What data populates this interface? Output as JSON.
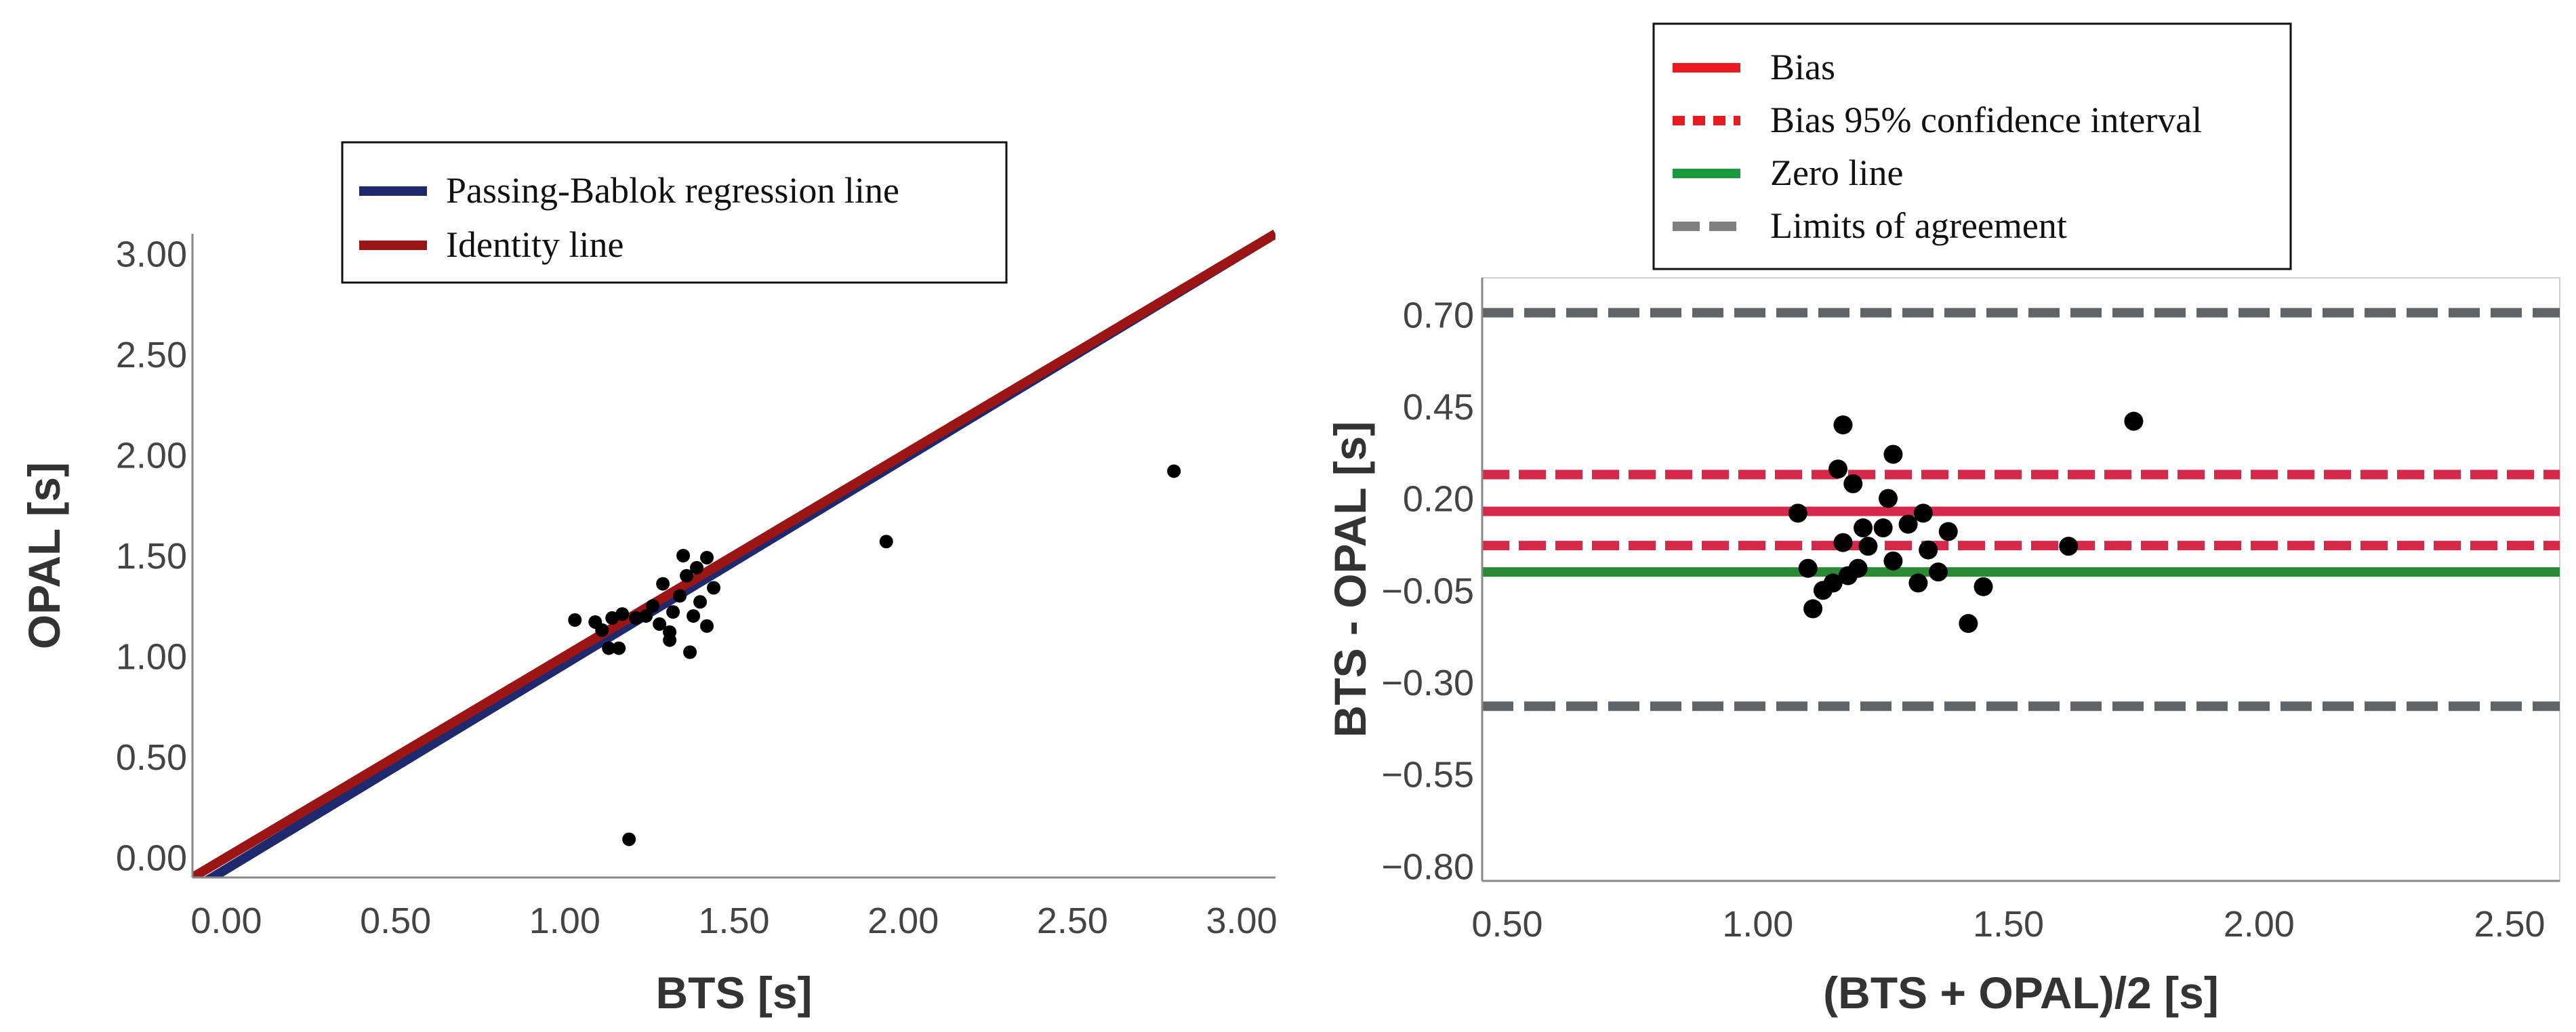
{
  "chart_data": [
    {
      "type": "scatter",
      "xlabel": "BTS  [s]",
      "ylabel": "OPAL  [s]",
      "xlim": [
        -0.1,
        3.1
      ],
      "ylim": [
        -0.1,
        3.1
      ],
      "xticks": [
        "0.00",
        "0.50",
        "1.00",
        "1.50",
        "2.00",
        "2.50",
        "3.00"
      ],
      "yticks": [
        "0.00",
        "0.50",
        "1.00",
        "1.50",
        "2.00",
        "2.50",
        "3.00"
      ],
      "legend_position": "top-center",
      "legend": [
        {
          "label": "Passing-Bablok regression line",
          "color": "#1f2a6e",
          "style": "solid"
        },
        {
          "label": "Identity line",
          "color": "#9b1515",
          "style": "solid"
        }
      ],
      "lines": [
        {
          "name": "Passing-Bablok regression line",
          "color": "#1f2a6e",
          "x": [
            -0.1,
            3.1
          ],
          "y": [
            -0.16,
            3.1
          ]
        },
        {
          "name": "Identity line",
          "color": "#9b1515",
          "x": [
            -0.1,
            3.1
          ],
          "y": [
            -0.1,
            3.1
          ]
        }
      ],
      "points": [
        {
          "x": 1.03,
          "y": 1.18
        },
        {
          "x": 1.09,
          "y": 1.17
        },
        {
          "x": 1.11,
          "y": 1.13
        },
        {
          "x": 1.13,
          "y": 1.04
        },
        {
          "x": 1.14,
          "y": 1.19
        },
        {
          "x": 1.16,
          "y": 1.04
        },
        {
          "x": 1.17,
          "y": 1.21
        },
        {
          "x": 1.19,
          "y": 0.09
        },
        {
          "x": 1.21,
          "y": 1.19
        },
        {
          "x": 1.24,
          "y": 1.2
        },
        {
          "x": 1.26,
          "y": 1.25
        },
        {
          "x": 1.28,
          "y": 1.16
        },
        {
          "x": 1.29,
          "y": 1.36
        },
        {
          "x": 1.31,
          "y": 1.08
        },
        {
          "x": 1.31,
          "y": 1.12
        },
        {
          "x": 1.32,
          "y": 1.22
        },
        {
          "x": 1.34,
          "y": 1.3
        },
        {
          "x": 1.35,
          "y": 1.5
        },
        {
          "x": 1.36,
          "y": 1.4
        },
        {
          "x": 1.37,
          "y": 1.02
        },
        {
          "x": 1.38,
          "y": 1.2
        },
        {
          "x": 1.39,
          "y": 1.44
        },
        {
          "x": 1.4,
          "y": 1.27
        },
        {
          "x": 1.42,
          "y": 1.49
        },
        {
          "x": 1.42,
          "y": 1.15
        },
        {
          "x": 1.44,
          "y": 1.34
        },
        {
          "x": 1.95,
          "y": 1.57
        },
        {
          "x": 2.8,
          "y": 1.92
        }
      ]
    },
    {
      "type": "scatter",
      "xlabel": "(BTS + OPAL)/2  [s]",
      "ylabel": "BTS - OPAL  [s]",
      "xlim": [
        0.45,
        2.6
      ],
      "ylim": [
        -0.84,
        0.8
      ],
      "xticks": [
        "0.50",
        "1.00",
        "1.50",
        "2.00",
        "2.50"
      ],
      "yticks": [
        "0.70",
        "0.45",
        "0.20",
        "-0.05",
        "-0.30",
        "-0.55",
        "-0.80"
      ],
      "legend_position": "top-center",
      "legend": [
        {
          "label": "Bias",
          "color": "#e8191e",
          "style": "solid"
        },
        {
          "label": "Bias 95% confidence interval",
          "color": "#e8191e",
          "style": "dotted"
        },
        {
          "label": "Zero line",
          "color": "#1a9a3c",
          "style": "solid"
        },
        {
          "label": "Limits of agreement",
          "color": "#808080",
          "style": "dashed"
        }
      ],
      "hlines": [
        {
          "name": "Limits of agreement",
          "y": 0.705,
          "color": "#5f6468",
          "style": "dashed"
        },
        {
          "name": "Bias 95% confidence interval",
          "y": 0.265,
          "color": "#d6294a",
          "style": "dashed"
        },
        {
          "name": "Bias",
          "y": 0.165,
          "color": "#d6294a",
          "style": "solid"
        },
        {
          "name": "Bias 95% confidence interval",
          "y": 0.072,
          "color": "#d6294a",
          "style": "dashed"
        },
        {
          "name": "Zero line",
          "y": 0.0,
          "color": "#2a8a34",
          "style": "solid"
        },
        {
          "name": "Limits of agreement",
          "y": -0.365,
          "color": "#5f6468",
          "style": "dashed"
        }
      ],
      "points": [
        {
          "x": 1.08,
          "y": 0.16
        },
        {
          "x": 1.1,
          "y": 0.01
        },
        {
          "x": 1.11,
          "y": -0.1
        },
        {
          "x": 1.13,
          "y": -0.05
        },
        {
          "x": 1.15,
          "y": -0.03
        },
        {
          "x": 1.16,
          "y": 0.28
        },
        {
          "x": 1.17,
          "y": 0.4
        },
        {
          "x": 1.17,
          "y": 0.08
        },
        {
          "x": 1.18,
          "y": -0.01
        },
        {
          "x": 1.19,
          "y": 0.24
        },
        {
          "x": 1.2,
          "y": 0.01
        },
        {
          "x": 1.21,
          "y": 0.12
        },
        {
          "x": 1.22,
          "y": 0.07
        },
        {
          "x": 1.25,
          "y": 0.12
        },
        {
          "x": 1.26,
          "y": 0.2
        },
        {
          "x": 1.27,
          "y": 0.32
        },
        {
          "x": 1.27,
          "y": 0.03
        },
        {
          "x": 1.3,
          "y": 0.13
        },
        {
          "x": 1.32,
          "y": -0.03
        },
        {
          "x": 1.33,
          "y": 0.16
        },
        {
          "x": 1.34,
          "y": 0.06
        },
        {
          "x": 1.36,
          "y": 0.0
        },
        {
          "x": 1.38,
          "y": 0.11
        },
        {
          "x": 1.42,
          "y": -0.14
        },
        {
          "x": 1.45,
          "y": -0.04
        },
        {
          "x": 1.62,
          "y": 0.07
        },
        {
          "x": 1.75,
          "y": 0.41
        }
      ]
    }
  ]
}
